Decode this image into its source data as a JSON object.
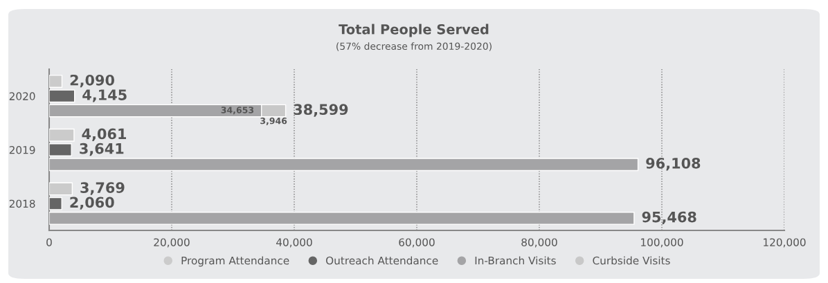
{
  "chart_data": {
    "type": "bar",
    "orientation": "horizontal",
    "title": "Total People Served",
    "subtitle": "(57% decrease from 2019-2020)",
    "categories": [
      "2020",
      "2019",
      "2018"
    ],
    "series": [
      {
        "name": "Program Attendance",
        "color": "#cbcbcb",
        "values": [
          2090,
          4061,
          3769
        ],
        "value_labels": [
          "2,090",
          "4,061",
          "3,769"
        ]
      },
      {
        "name": "Outreach Attendance",
        "color": "#656565",
        "values": [
          4145,
          3641,
          2060
        ],
        "value_labels": [
          "4,145",
          "3,641",
          "2,060"
        ]
      },
      {
        "name": "In-Branch Visits",
        "color": "#a4a4a6",
        "values": [
          34653,
          96108,
          95468
        ],
        "value_labels": [
          "34,653",
          "96,108",
          "95,468"
        ]
      },
      {
        "name": "Curbside Visits",
        "color": "#c8c8c8",
        "values": [
          3946,
          null,
          null
        ],
        "base": [
          34653,
          null,
          null
        ],
        "value_labels": [
          "3,946",
          null,
          null
        ]
      }
    ],
    "annotations": [
      "38,599"
    ],
    "xlim": [
      0,
      120000
    ],
    "xticks": [
      0,
      {
        "value": 20000,
        "label": "20,000"
      },
      {
        "value": 40000,
        "label": "40,000"
      },
      {
        "value": 60000,
        "label": "60,000"
      },
      {
        "value": 80000,
        "label": "80,000"
      },
      {
        "value": 100000,
        "label": "100,000"
      },
      {
        "value": 120000,
        "label": "120,000"
      }
    ],
    "grid": "x",
    "legend": "bottom"
  }
}
